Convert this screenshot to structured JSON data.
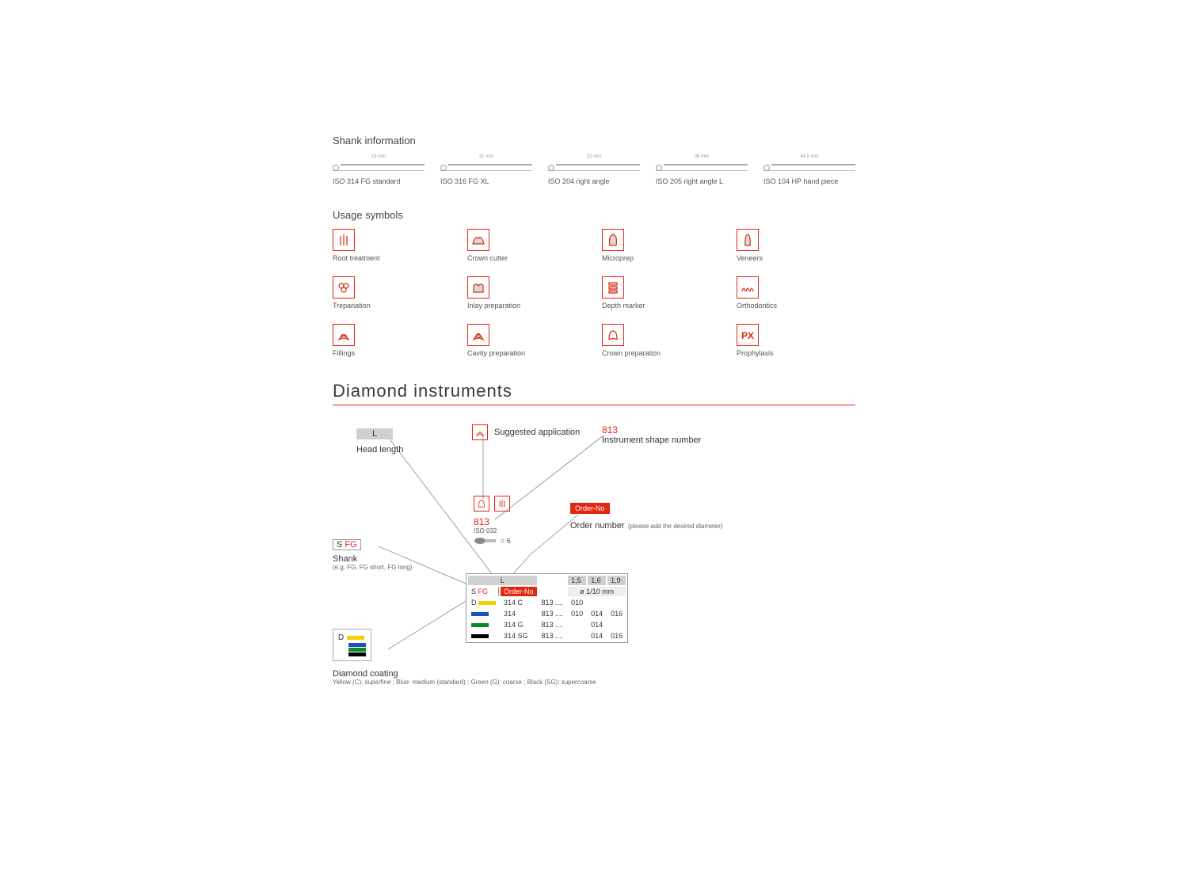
{
  "shank": {
    "title": "Shank information",
    "items": [
      {
        "dim": "19 mm",
        "label": "ISO 314 FG standard"
      },
      {
        "dim": "21 mm",
        "label": "ISO 316 FG XL"
      },
      {
        "dim": "22 mm",
        "label": "ISO 204 right angle"
      },
      {
        "dim": "26 mm",
        "label": "ISO 205 right angle L"
      },
      {
        "dim": "44.5 mm",
        "label": "ISO 104 HP hand piece"
      }
    ]
  },
  "usage": {
    "title": "Usage symbols",
    "items": [
      {
        "label": "Root treatment",
        "icon": "root"
      },
      {
        "label": "Crown cutter",
        "icon": "crowncut"
      },
      {
        "label": "Microprep",
        "icon": "microprep"
      },
      {
        "label": "Veneers",
        "icon": "veneers"
      },
      {
        "label": "Trepanation",
        "icon": "trepan"
      },
      {
        "label": "Inlay preparation",
        "icon": "inlay"
      },
      {
        "label": "Depth marker",
        "icon": "depth"
      },
      {
        "label": "Orthodontics",
        "icon": "ortho"
      },
      {
        "label": "Fillings",
        "icon": "fillings"
      },
      {
        "label": "Cavity preparation",
        "icon": "cavity"
      },
      {
        "label": "Crown preparation",
        "icon": "crownprep"
      },
      {
        "label": "Prophylaxis",
        "icon": "px"
      }
    ]
  },
  "diamond": {
    "title": "Diamond instruments",
    "headlen": {
      "chip": "L",
      "label": "Head length"
    },
    "suggested": "Suggested application",
    "shapeno": {
      "num": "813",
      "label": "Instrument shape number"
    },
    "shank_call": {
      "chip_s": "S",
      "chip_fg": "FG",
      "label": "Shank",
      "sub": "(e.g. FG, FG short, FG long)"
    },
    "order": {
      "chip": "Order-No",
      "label": "Order number",
      "sub": "(please add the desired diameter)"
    },
    "prod": {
      "num": "813",
      "isoline": "ISO 032",
      "qty_prefix": "= ",
      "qty": "6"
    },
    "table": {
      "lhead": "L",
      "sizes": [
        "1,5",
        "1,6",
        "1,9"
      ],
      "shead_s": "S",
      "shead_fg": "FG",
      "order_chip": "Order-No",
      "diam_head": "ø 1/10 mm",
      "d_label": "D",
      "rows": [
        {
          "color": "#f6d100",
          "code": "314 C",
          "ord": "813 ....",
          "d1": "010",
          "d2": "",
          "d3": ""
        },
        {
          "color": "#1e4fbf",
          "code": "314",
          "ord": "813 ....",
          "d1": "010",
          "d2": "014",
          "d3": "016"
        },
        {
          "color": "#0a8a2a",
          "code": "314 G",
          "ord": "813 ....",
          "d1": "",
          "d2": "014",
          "d3": ""
        },
        {
          "color": "#000000",
          "code": "314 SG",
          "ord": "813 ....",
          "d1": "",
          "d2": "014",
          "d3": "016"
        }
      ]
    },
    "coating": {
      "d_label": "D",
      "colors": [
        "#f6d100",
        "#1e4fbf",
        "#0a8a2a",
        "#000000"
      ],
      "title": "Diamond coating",
      "legend": "Yellow (C): superfine ; Blue: medium (standard) ; Green (G): coarse ; Black (SG): supercoarse"
    }
  }
}
